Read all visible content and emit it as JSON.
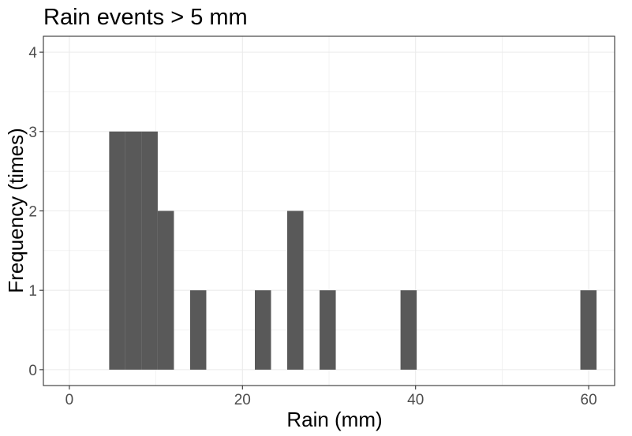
{
  "chart_data": {
    "type": "bar",
    "title": "Rain events > 5 mm",
    "xlabel": "Rain (mm)",
    "ylabel": "Frequency (times)",
    "xlim": [
      -3.0,
      63.0
    ],
    "ylim": [
      -0.2,
      4.2
    ],
    "x_ticks": [
      0,
      20,
      40,
      60
    ],
    "y_ticks": [
      0,
      1,
      2,
      3,
      4
    ],
    "grid": true,
    "bin_width": 1.87,
    "bins": [
      {
        "x_start": 4.6,
        "x_end": 6.47,
        "count": 3
      },
      {
        "x_start": 6.47,
        "x_end": 8.34,
        "count": 3
      },
      {
        "x_start": 8.34,
        "x_end": 10.21,
        "count": 3
      },
      {
        "x_start": 10.21,
        "x_end": 12.08,
        "count": 2
      },
      {
        "x_start": 13.95,
        "x_end": 15.82,
        "count": 1
      },
      {
        "x_start": 21.43,
        "x_end": 23.3,
        "count": 1
      },
      {
        "x_start": 25.17,
        "x_end": 27.04,
        "count": 2
      },
      {
        "x_start": 28.91,
        "x_end": 30.78,
        "count": 1
      },
      {
        "x_start": 38.26,
        "x_end": 40.13,
        "count": 1
      },
      {
        "x_start": 59.04,
        "x_end": 60.91,
        "count": 1
      }
    ],
    "colors": {
      "bar": "#595959",
      "grid": "#ebebeb",
      "border": "#333333",
      "tick_text": "#4d4d4d"
    }
  }
}
